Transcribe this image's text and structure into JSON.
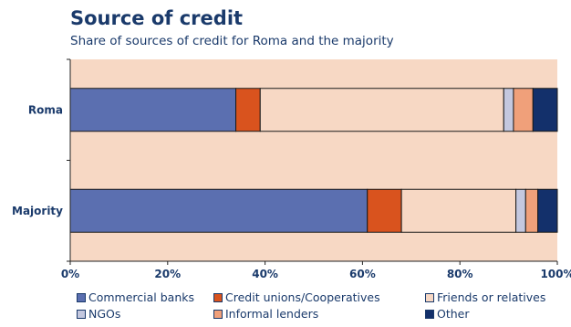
{
  "chart_data": {
    "type": "bar",
    "orientation": "horizontal",
    "stacked": true,
    "title": "Source of credit",
    "subtitle": "Share of sources of credit for Roma and the majority",
    "categories": [
      "Roma",
      "Majority"
    ],
    "series": [
      {
        "name": "Commercial banks",
        "color": "#5b6fb0",
        "values": [
          34,
          61
        ]
      },
      {
        "name": "Credit unions/Cooperatives",
        "color": "#d9531e",
        "values": [
          5,
          7
        ]
      },
      {
        "name": "Friends or relatives",
        "color": "#f7d8c4",
        "values": [
          50,
          23.5
        ]
      },
      {
        "name": "NGOs",
        "color": "#c4c8df",
        "values": [
          2,
          2
        ]
      },
      {
        "name": "Informal lenders",
        "color": "#f0a07a",
        "values": [
          4,
          2.5
        ]
      },
      {
        "name": "Other",
        "color": "#13306b",
        "values": [
          5,
          4
        ]
      }
    ],
    "xlim": [
      0,
      100
    ],
    "xticks": [
      "0%",
      "20%",
      "40%",
      "60%",
      "80%",
      "100%"
    ],
    "xlabel": "",
    "ylabel": "",
    "grid": false,
    "legend_position": "bottom",
    "background_color": "#f7d8c4"
  }
}
